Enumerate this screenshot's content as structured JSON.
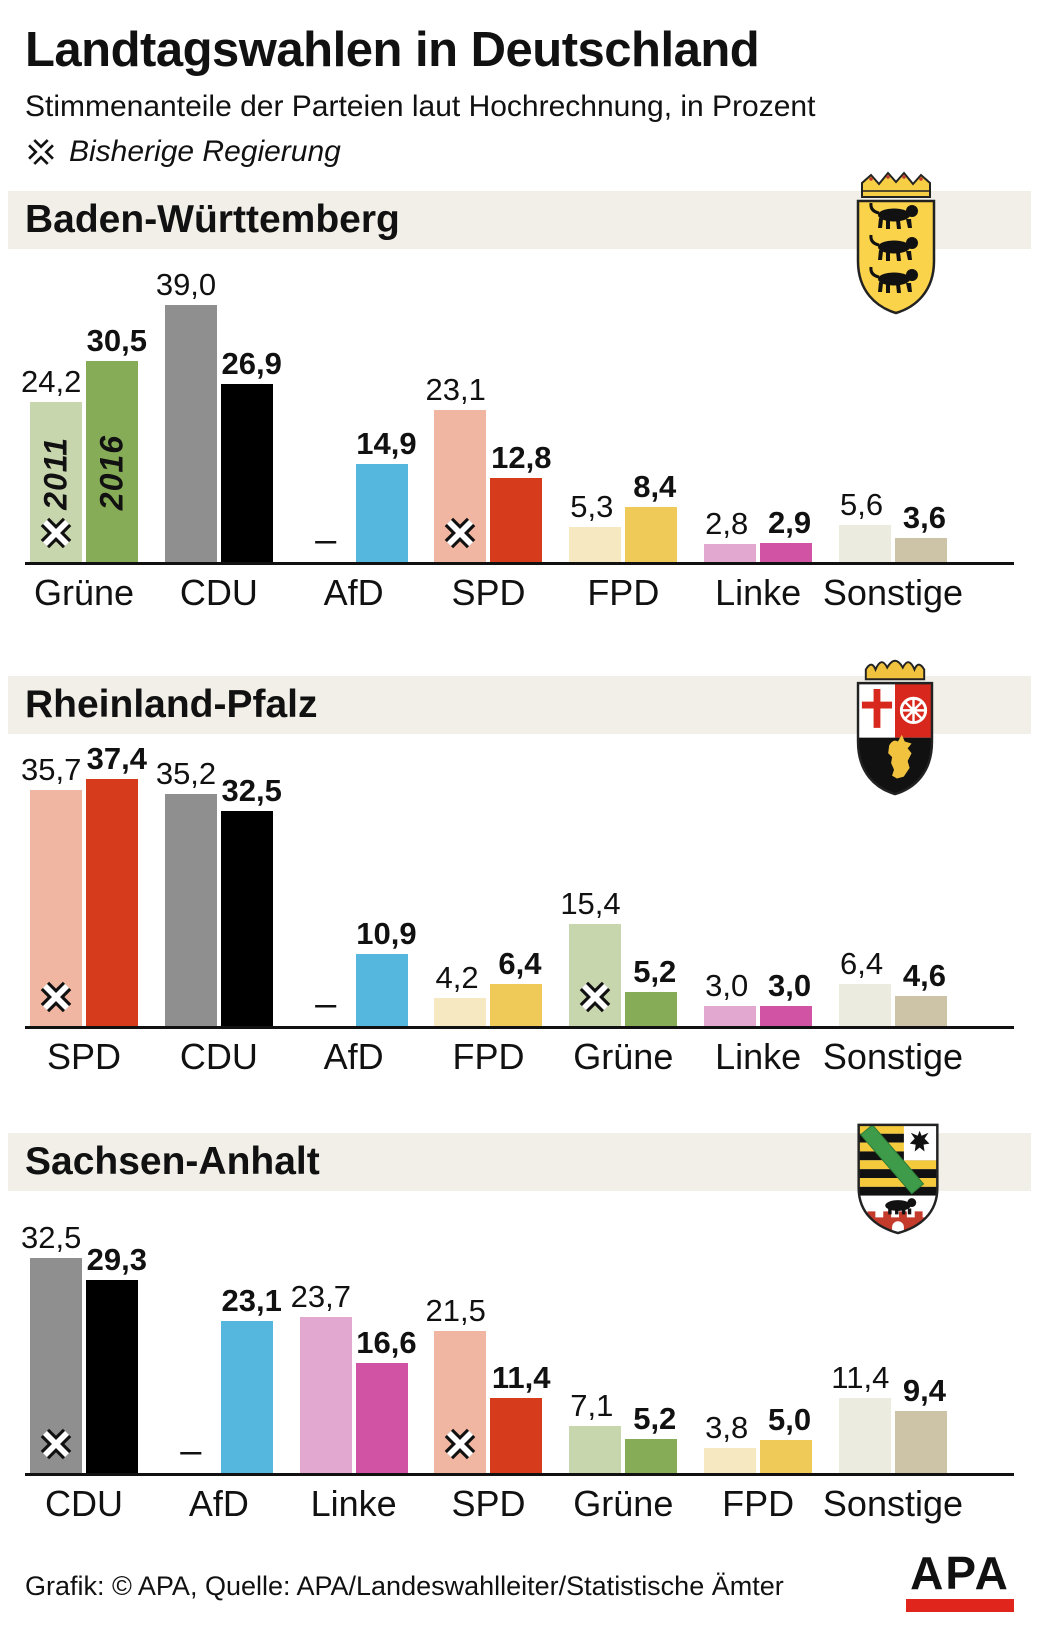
{
  "header": {
    "title": "Landtagswahlen in Deutschland",
    "subtitle": "Stimmenanteile der Parteien laut Hochrechnung, in Prozent",
    "legend": {
      "icon": "governing-cross-icon",
      "label": "Bisherige Regierung"
    }
  },
  "party_colors": {
    "Grüne": {
      "y2011": "#c8d6ae",
      "y2016": "#87ac57"
    },
    "CDU": {
      "y2011": "#8f8f8f",
      "y2016": "#000000"
    },
    "AfD": {
      "y2011": null,
      "y2016": "#55b6de"
    },
    "SPD": {
      "y2011": "#f0b6a1",
      "y2016": "#d63c1b"
    },
    "FPD": {
      "y2011": "#f6e9c1",
      "y2016": "#efca59"
    },
    "Linke": {
      "y2011": "#e3a8d0",
      "y2016": "#d053a4"
    },
    "Sonstige": {
      "y2011": "#ecebe0",
      "y2016": "#cdc4a8"
    }
  },
  "chart_data": [
    {
      "type": "bar",
      "title": "Baden-Württemberg",
      "crest": "baden-wuerttemberg-coat-of-arms",
      "unit": "Prozent",
      "categories": [
        "Grüne",
        "CDU",
        "AfD",
        "SPD",
        "FPD",
        "Linke",
        "Sonstige"
      ],
      "series": [
        {
          "name": "2011",
          "values": [
            24.2,
            39.0,
            null,
            23.1,
            5.3,
            2.8,
            5.6
          ]
        },
        {
          "name": "2016",
          "values": [
            30.5,
            26.9,
            14.9,
            12.8,
            8.4,
            2.9,
            3.6
          ]
        }
      ],
      "value_labels": {
        "2011": [
          "24,2",
          "39,0",
          "–",
          "23,1",
          "5,3",
          "2,8",
          "5,6"
        ],
        "2016": [
          "30,5",
          "26,9",
          "14,9",
          "12,8",
          "8,4",
          "2,9",
          "3,6"
        ]
      },
      "governing_2011": [
        true,
        false,
        false,
        true,
        false,
        false,
        false
      ],
      "year_labels_in_first_group": true
    },
    {
      "type": "bar",
      "title": "Rheinland-Pfalz",
      "crest": "rheinland-pfalz-coat-of-arms",
      "unit": "Prozent",
      "categories": [
        "SPD",
        "CDU",
        "AfD",
        "FPD",
        "Grüne",
        "Linke",
        "Sonstige"
      ],
      "series": [
        {
          "name": "2011",
          "values": [
            35.7,
            35.2,
            null,
            4.2,
            15.4,
            3.0,
            6.4
          ]
        },
        {
          "name": "2016",
          "values": [
            37.4,
            32.5,
            10.9,
            6.4,
            5.2,
            3.0,
            4.6
          ]
        }
      ],
      "value_labels": {
        "2011": [
          "35,7",
          "35,2",
          "–",
          "4,2",
          "15,4",
          "3,0",
          "6,4"
        ],
        "2016": [
          "37,4",
          "32,5",
          "10,9",
          "6,4",
          "5,2",
          "3,0",
          "4,6"
        ]
      },
      "governing_2011": [
        true,
        false,
        false,
        false,
        true,
        false,
        false
      ],
      "year_labels_in_first_group": false
    },
    {
      "type": "bar",
      "title": "Sachsen-Anhalt",
      "crest": "sachsen-anhalt-coat-of-arms",
      "unit": "Prozent",
      "categories": [
        "CDU",
        "AfD",
        "Linke",
        "SPD",
        "Grüne",
        "FPD",
        "Sonstige"
      ],
      "series": [
        {
          "name": "2011",
          "values": [
            32.5,
            null,
            23.7,
            21.5,
            7.1,
            3.8,
            11.4
          ]
        },
        {
          "name": "2016",
          "values": [
            29.3,
            23.1,
            16.6,
            11.4,
            5.2,
            5.0,
            9.4
          ]
        }
      ],
      "value_labels": {
        "2011": [
          "32,5",
          "–",
          "23,7",
          "21,5",
          "7,1",
          "3,8",
          "11,4"
        ],
        "2016": [
          "29,3",
          "23,1",
          "16,6",
          "11,4",
          "5,2",
          "5,0",
          "9,4"
        ]
      },
      "governing_2011": [
        true,
        false,
        false,
        true,
        false,
        false,
        false
      ],
      "year_labels_in_first_group": false
    }
  ],
  "footer": {
    "credit": "Grafik: © APA, Quelle: APA/Landeswahlleiter/Statistische Ämter",
    "logo_text": "APA"
  }
}
